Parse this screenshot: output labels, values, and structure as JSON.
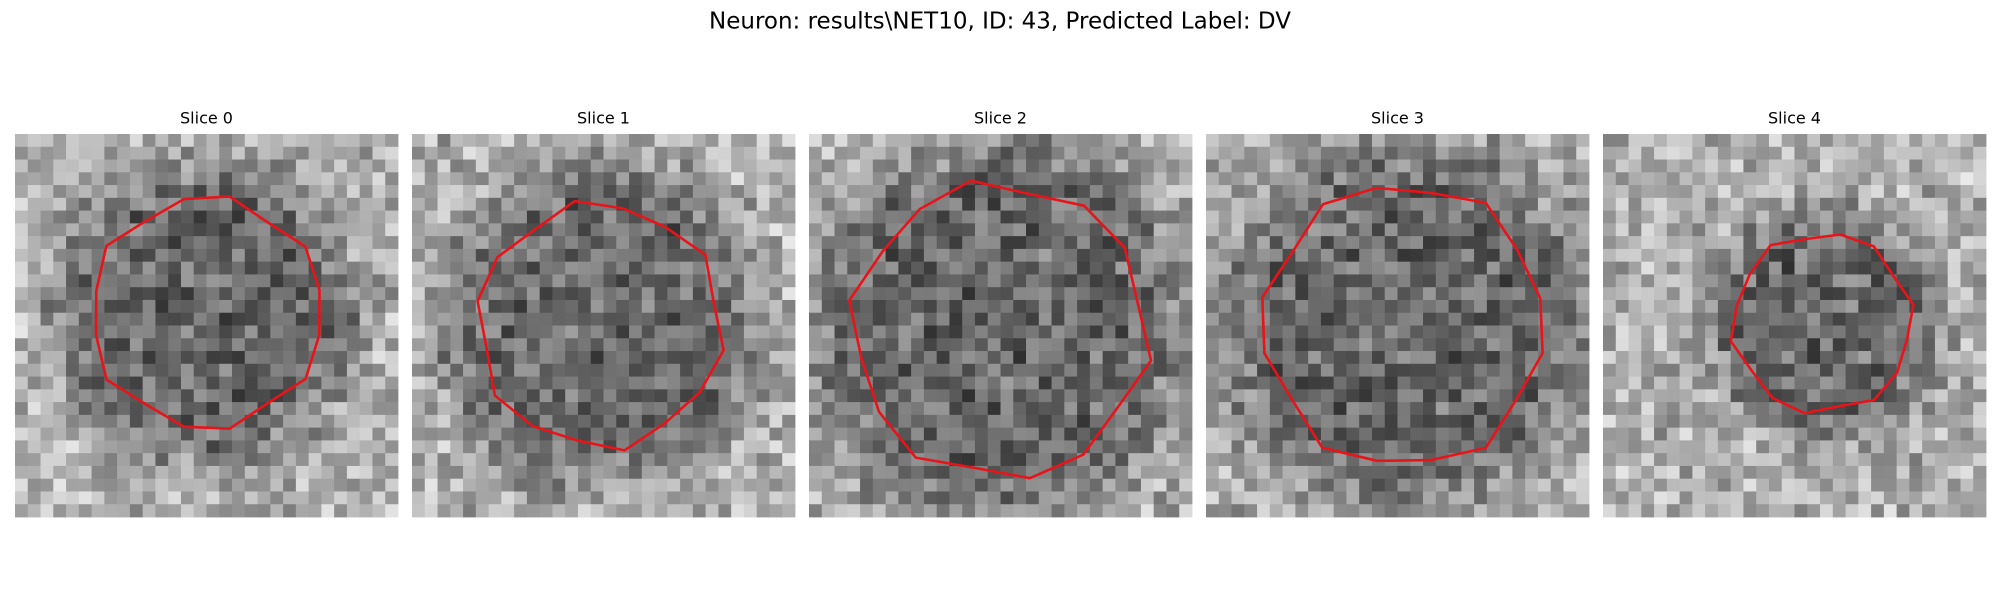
{
  "header": {
    "title": "Neuron: results\\NET10, ID: 43, Predicted Label: DV"
  },
  "panels": [
    {
      "title": "Slice 0"
    },
    {
      "title": "Slice 1"
    },
    {
      "title": "Slice 2"
    },
    {
      "title": "Slice 3"
    },
    {
      "title": "Slice 4"
    }
  ]
}
